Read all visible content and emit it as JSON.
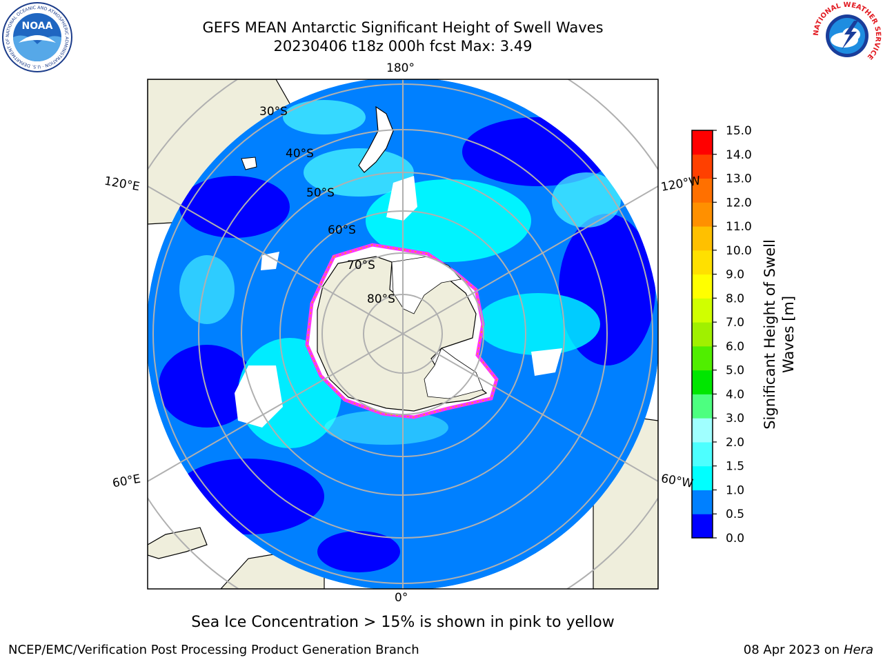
{
  "header": {
    "title_line1": "GEFS MEAN Antarctic Significant Height of Swell Waves",
    "title_line2": "20230406 t18z 000h fcst   Max: 3.49"
  },
  "logos": {
    "noaa": {
      "text": "NOAA",
      "ring_text": "NATIONAL OCEANIC AND ATMOSPHERIC ADMINISTRATION · U.S. DEPARTMENT OF COMMERCE"
    },
    "nws": {
      "ring_text": "NATIONAL WEATHER SERVICE"
    }
  },
  "map": {
    "projection": "south polar stereographic",
    "longitude_labels": {
      "top": "180°",
      "bottom": "0°",
      "upper_left": "120°E",
      "upper_right": "120°W",
      "lower_left": "60°E",
      "lower_right": "60°W"
    },
    "latitude_labels": [
      "30°S",
      "40°S",
      "50°S",
      "60°S",
      "70°S",
      "80°S"
    ],
    "colors": {
      "land": "#efeedc",
      "ocean_low": "#0000ff",
      "ocean_mid": "#0080ff",
      "ocean_high": "#00ffff",
      "ice_edge": "#ff33ff",
      "grid": "#b0b0b0"
    }
  },
  "colorbar": {
    "title_line1": "Significant Height of Swell",
    "title_line2": "Waves [m]",
    "tick_labels": [
      "0.0",
      "0.5",
      "1.0",
      "1.5",
      "2.0",
      "3.0",
      "4.0",
      "5.0",
      "6.0",
      "7.0",
      "8.0",
      "9.0",
      "10.0",
      "11.0",
      "12.0",
      "13.0",
      "14.0",
      "15.0"
    ],
    "colors": [
      "#0000ff",
      "#0080ff",
      "#00ffff",
      "#4dffff",
      "#a0ffff",
      "#4dff80",
      "#00e600",
      "#50ee00",
      "#a0f000",
      "#d0ff00",
      "#ffff00",
      "#ffe000",
      "#ffc000",
      "#ff9000",
      "#ff7000",
      "#ff4000",
      "#ff0000"
    ]
  },
  "caption": "Sea Ice Concentration > 15% is shown in pink to yellow",
  "footer": {
    "left": "NCEP/EMC/Verification Post Processing Product Generation Branch",
    "right_date": "08 Apr 2023 on ",
    "right_host": "Hera"
  }
}
